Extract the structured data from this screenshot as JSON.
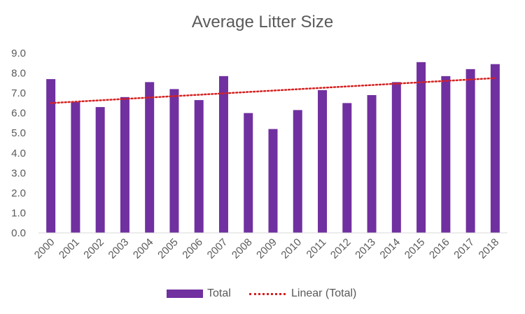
{
  "colors": {
    "bar": "#7030a0",
    "trend": "#d62020",
    "axis": "#d9d9d9",
    "text": "#595959"
  },
  "chart_data": {
    "type": "bar",
    "title": "Average Litter Size",
    "xlabel": "",
    "ylabel": "",
    "ylim": [
      0,
      9
    ],
    "y_ticks": [
      "0.0",
      "1.0",
      "2.0",
      "3.0",
      "4.0",
      "5.0",
      "6.0",
      "7.0",
      "8.0",
      "9.0"
    ],
    "grid": false,
    "legend_position": "bottom",
    "categories": [
      "2000",
      "2001",
      "2002",
      "2003",
      "2004",
      "2005",
      "2006",
      "2007",
      "2008",
      "2009",
      "2010",
      "2011",
      "2012",
      "2013",
      "2014",
      "2015",
      "2016",
      "2017",
      "2018"
    ],
    "series": [
      {
        "name": "Total",
        "values": [
          7.7,
          6.55,
          6.3,
          6.8,
          7.55,
          7.2,
          6.65,
          7.85,
          6.0,
          5.2,
          6.15,
          7.15,
          6.5,
          6.9,
          7.55,
          8.55,
          7.85,
          8.2,
          8.45
        ]
      }
    ],
    "trendline": {
      "name": "Linear (Total)",
      "type": "linear",
      "start_value": 6.5,
      "end_value": 7.75
    }
  }
}
